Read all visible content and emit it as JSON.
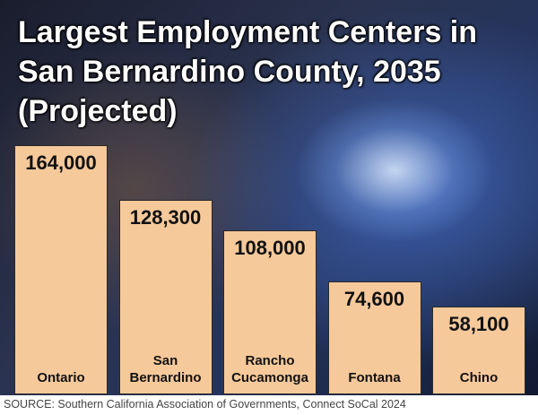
{
  "chart_data": {
    "type": "bar",
    "title": "Largest Employment Centers in San Bernardino County, 2035 (Projected)",
    "categories": [
      "Ontario",
      "San Bernardino",
      "Rancho Cucamonga",
      "Fontana",
      "Chino"
    ],
    "values": [
      164000,
      128300,
      108000,
      74600,
      58100
    ],
    "value_labels": [
      "164,000",
      "128,300",
      "108,000",
      "74,600",
      "58,100"
    ],
    "color": "#f6c99b",
    "source": "SOURCE: Southern California Association of Governments, Connect SoCal 2024"
  }
}
